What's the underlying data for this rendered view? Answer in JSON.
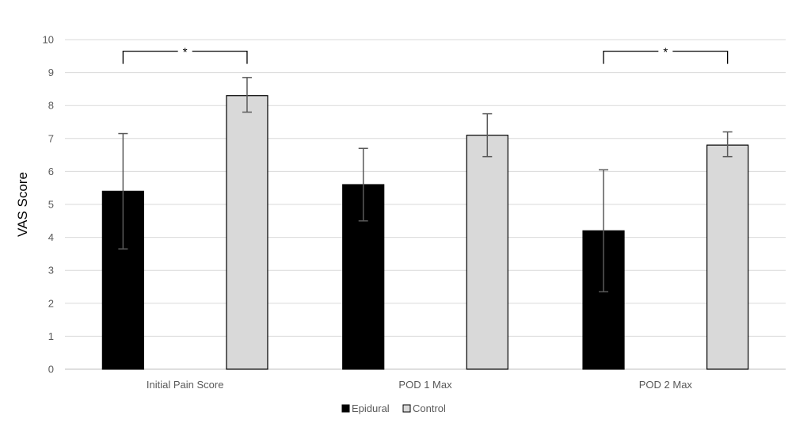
{
  "chart_data": {
    "type": "bar",
    "title": "",
    "xlabel": "",
    "ylabel": "VAS Score",
    "ylim": [
      0,
      10
    ],
    "yticks": [
      0,
      1,
      2,
      3,
      4,
      5,
      6,
      7,
      8,
      9,
      10
    ],
    "categories": [
      "Initial Pain Score",
      "POD 1 Max",
      "POD 2 Max"
    ],
    "series": [
      {
        "name": "Epidural",
        "color": "#000000",
        "values": [
          5.4,
          5.6,
          4.2
        ],
        "error_low": [
          3.65,
          4.5,
          2.35
        ],
        "error_high": [
          7.15,
          6.7,
          6.05
        ]
      },
      {
        "name": "Control",
        "color": "#d9d9d9",
        "values": [
          8.3,
          7.1,
          6.8
        ],
        "error_low": [
          7.8,
          6.45,
          6.45
        ],
        "error_high": [
          8.85,
          7.75,
          7.2
        ]
      }
    ],
    "significance": [
      {
        "category": "Initial Pain Score",
        "label": "*",
        "level": 9.6
      },
      {
        "category": "POD 2 Max",
        "label": "*",
        "level": 9.6
      }
    ],
    "grid": true,
    "legend_position": "bottom-center"
  }
}
